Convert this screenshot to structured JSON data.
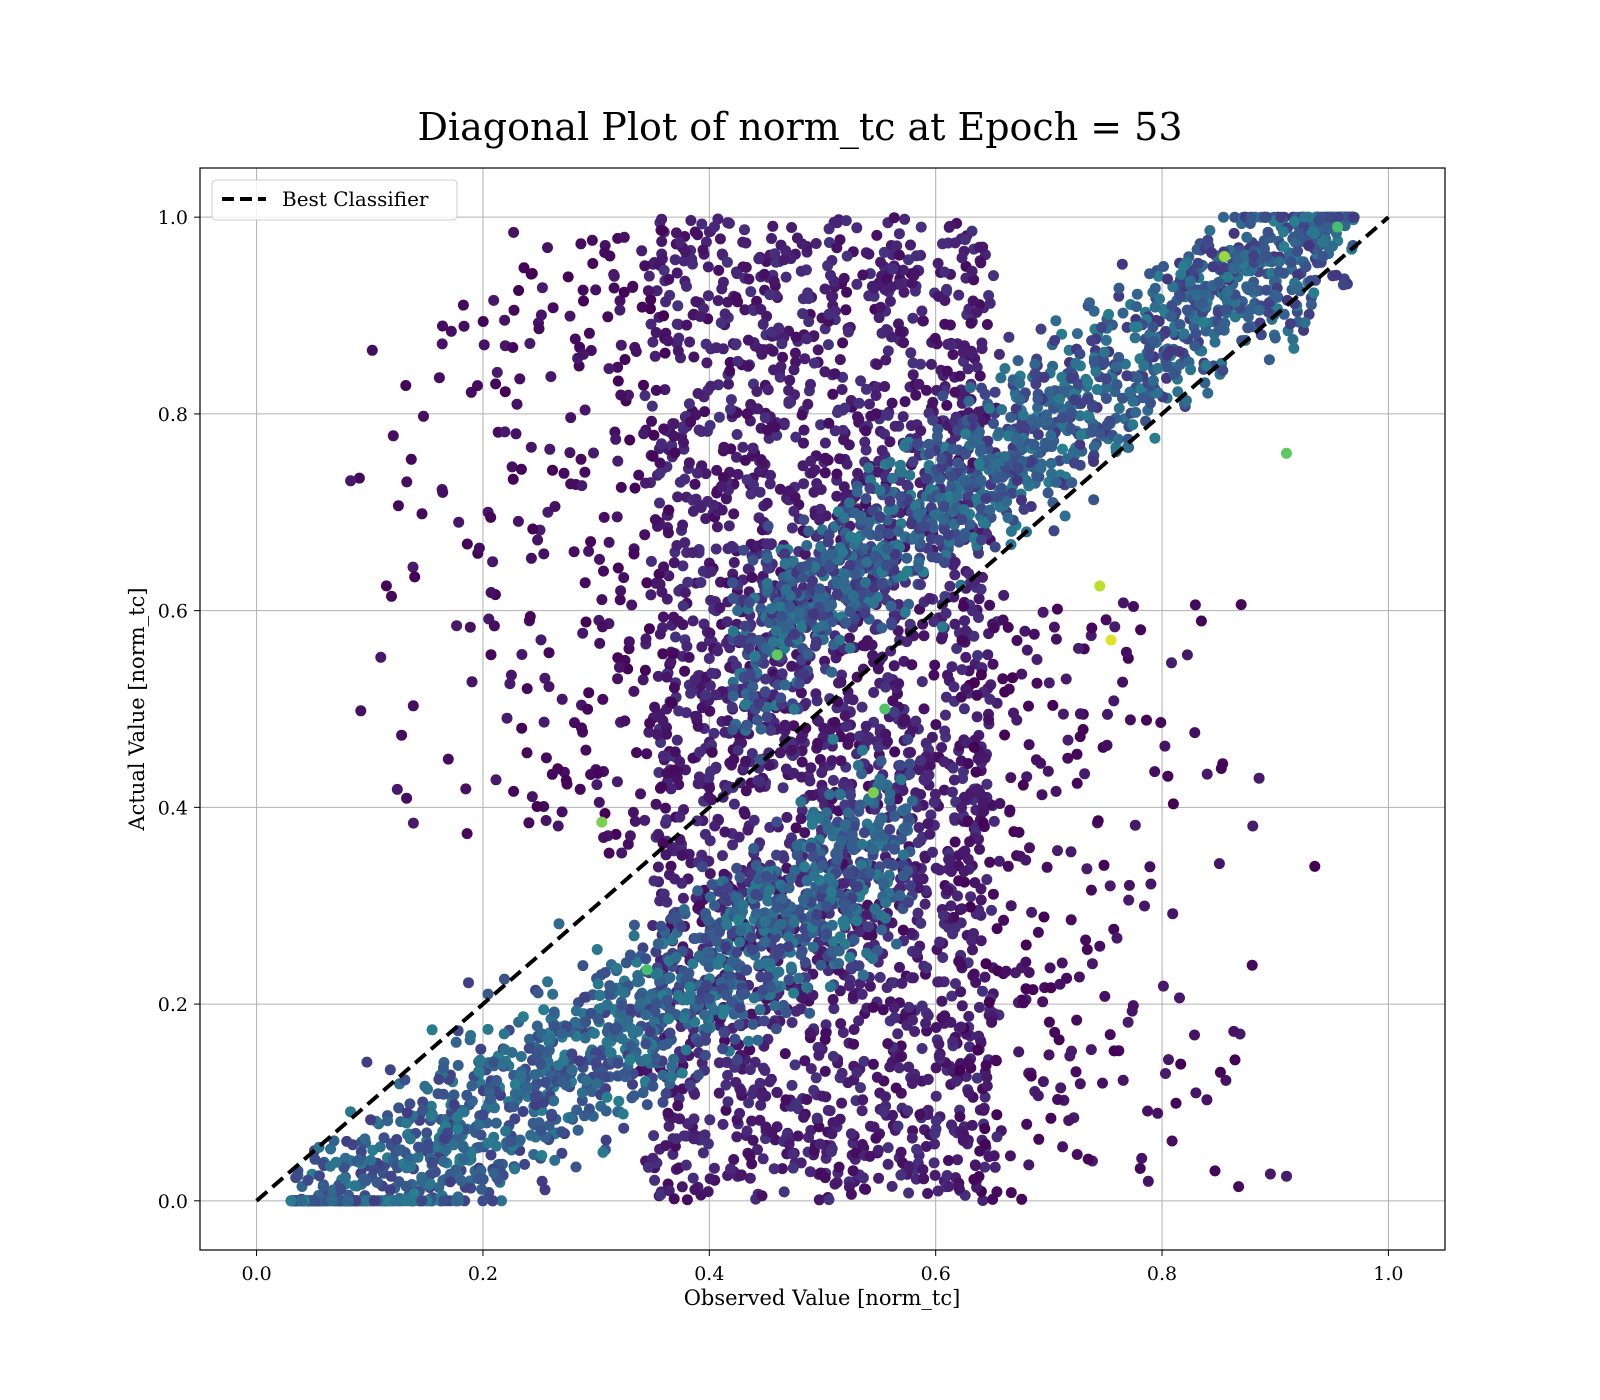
{
  "chart_data": {
    "type": "scatter",
    "title": "Diagonal Plot of norm_tc at Epoch = 53",
    "xlabel": "Observed Value [norm_tc]",
    "ylabel": "Actual Value [norm_tc]",
    "xlim": [
      -0.05,
      1.05
    ],
    "ylim": [
      -0.05,
      1.05
    ],
    "xticks": [
      "0.0",
      "0.2",
      "0.4",
      "0.6",
      "0.8",
      "1.0"
    ],
    "yticks": [
      "0.0",
      "0.2",
      "0.4",
      "0.6",
      "0.8",
      "1.0"
    ],
    "grid": true,
    "colormap": "viridis",
    "legend": {
      "placement": "upper-left",
      "entries": [
        {
          "label": "Best Classifier",
          "style": "black dashed line"
        }
      ]
    },
    "reference_line": {
      "name": "Best Classifier",
      "x": [
        0,
        1
      ],
      "y": [
        0,
        1
      ],
      "color": "#000000",
      "style": "dashed"
    },
    "point_clouds": [
      {
        "region": "lower-left band near diagonal",
        "x_range": [
          0.03,
          0.6
        ],
        "y_range": [
          0.0,
          0.45
        ],
        "density": "very high",
        "color_level": 0.35
      },
      {
        "region": "upper-right band near diagonal",
        "x_range": [
          0.55,
          0.97
        ],
        "y_range": [
          0.55,
          1.0
        ],
        "density": "very high",
        "color_level": 0.3
      },
      {
        "region": "central vertical mass",
        "x_range": [
          0.35,
          0.65
        ],
        "y_range": [
          0.0,
          1.0
        ],
        "density": "very high",
        "color_level": 0.08
      },
      {
        "region": "left sparse scatter",
        "x_range": [
          0.05,
          0.35
        ],
        "y_range": [
          0.4,
          1.0
        ],
        "density": "low",
        "color_level": 0.02
      },
      {
        "region": "right sparse scatter",
        "x_range": [
          0.6,
          0.93
        ],
        "y_range": [
          0.0,
          0.55
        ],
        "density": "low",
        "color_level": 0.02
      }
    ],
    "highlight_points": [
      {
        "x": 0.855,
        "y": 0.96,
        "color_level": 0.85
      },
      {
        "x": 0.91,
        "y": 0.76,
        "color_level": 0.75
      },
      {
        "x": 0.745,
        "y": 0.625,
        "color_level": 0.9
      },
      {
        "x": 0.755,
        "y": 0.57,
        "color_level": 0.95
      },
      {
        "x": 0.305,
        "y": 0.385,
        "color_level": 0.8
      },
      {
        "x": 0.345,
        "y": 0.235,
        "color_level": 0.7
      },
      {
        "x": 0.46,
        "y": 0.555,
        "color_level": 0.75
      },
      {
        "x": 0.545,
        "y": 0.415,
        "color_level": 0.8
      },
      {
        "x": 0.555,
        "y": 0.5,
        "color_level": 0.72
      },
      {
        "x": 0.955,
        "y": 0.99,
        "color_level": 0.7
      },
      {
        "x": 0.935,
        "y": 0.34,
        "color_level": 0.0
      },
      {
        "x": 0.91,
        "y": 0.025,
        "color_level": 0.08
      }
    ]
  }
}
